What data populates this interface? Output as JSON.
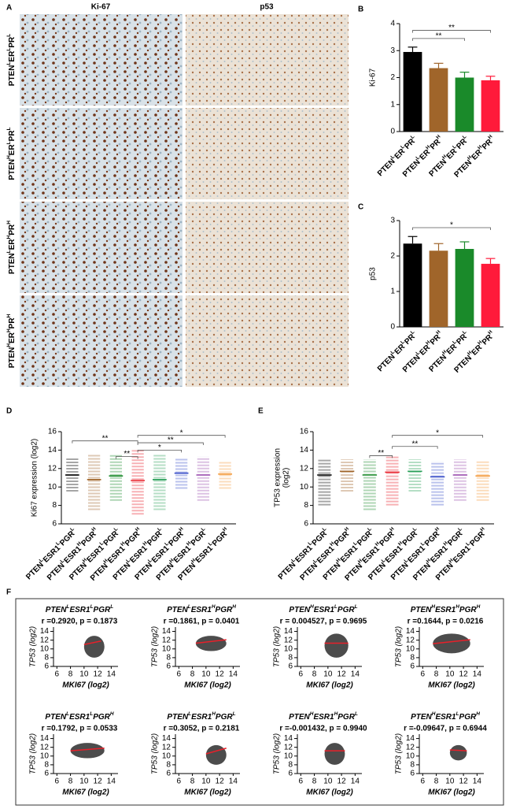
{
  "panel_A": {
    "letter": "A",
    "columns": [
      "Ki-67",
      "p53"
    ],
    "rows": [
      [
        "PTEN",
        "L",
        "ER",
        "L",
        "PR",
        "L"
      ],
      [
        "PTEN",
        "H",
        "ER",
        "L",
        "PR",
        "L"
      ],
      [
        "PTEN",
        "L",
        "ER",
        "H",
        "PR",
        "H"
      ],
      [
        "PTEN",
        "H",
        "ER",
        "H",
        "PR",
        "H"
      ]
    ]
  },
  "panel_F": {
    "letter": "F"
  },
  "chart_data": [
    {
      "type": "bar",
      "letter": "B",
      "ylabel": "Ki-67",
      "categories": [
        [
          "PTEN",
          "L",
          "ER",
          "L",
          "PR",
          "L"
        ],
        [
          "PTEN",
          "L",
          "ER",
          "H",
          "PR",
          "H"
        ],
        [
          "PTEN",
          "H",
          "ER",
          "L",
          "PR",
          "L"
        ],
        [
          "PTEN",
          "H",
          "ER",
          "H",
          "PR",
          "H"
        ]
      ],
      "values": [
        2.95,
        2.35,
        2.0,
        1.9
      ],
      "errors": [
        0.18,
        0.18,
        0.2,
        0.15
      ],
      "colors": [
        "#000000",
        "#a0652a",
        "#1a8a2a",
        "#ff1a3a"
      ],
      "ylim": [
        0,
        4
      ],
      "yticks": [
        0,
        1,
        2,
        3,
        4
      ],
      "brackets": [
        {
          "from": 0,
          "to": 3,
          "level": 3.75,
          "label": "**"
        },
        {
          "from": 0,
          "to": 2,
          "level": 3.45,
          "label": "**"
        }
      ]
    },
    {
      "type": "bar",
      "letter": "C",
      "ylabel": "p53",
      "categories": [
        [
          "PTEN",
          "L",
          "ER",
          "L",
          "PR",
          "L"
        ],
        [
          "PTEN",
          "L",
          "ER",
          "H",
          "PR",
          "H"
        ],
        [
          "PTEN",
          "H",
          "ER",
          "L",
          "PR",
          "L"
        ],
        [
          "PTEN",
          "H",
          "ER",
          "H",
          "PR",
          "H"
        ]
      ],
      "values": [
        2.35,
        2.15,
        2.2,
        1.78
      ],
      "errors": [
        0.2,
        0.2,
        0.2,
        0.15
      ],
      "colors": [
        "#000000",
        "#a0652a",
        "#1a8a2a",
        "#ff1a3a"
      ],
      "ylim": [
        0,
        3
      ],
      "yticks": [
        0,
        1,
        2,
        3
      ],
      "brackets": [
        {
          "from": 0,
          "to": 3,
          "level": 2.8,
          "label": "*"
        }
      ]
    },
    {
      "type": "dot",
      "letter": "D",
      "ylabel": [
        "Ki67 expression (log2)"
      ],
      "categories": [
        [
          "PTEN",
          "L",
          "ESR1",
          "L",
          "PGR",
          "L"
        ],
        [
          "PTEN",
          "L",
          "ESR1",
          "H",
          "PGR",
          "H"
        ],
        [
          "PTEN",
          "H",
          "ESR1",
          "L",
          "PGR",
          "L"
        ],
        [
          "PTEN",
          "H",
          "ESR1",
          "H",
          "PGR",
          "H"
        ],
        [
          "PTEN",
          "L",
          "ESR1",
          "H",
          "PGR",
          "L"
        ],
        [
          "PTEN",
          "L",
          "ESR1",
          "L",
          "PGR",
          "H"
        ],
        [
          "PTEN",
          "H",
          "ESR1",
          "H",
          "PGR",
          "L"
        ],
        [
          "PTEN",
          "H",
          "ESR1",
          "L",
          "PGR",
          "H"
        ]
      ],
      "values": [
        11.3,
        10.8,
        11.2,
        10.7,
        10.8,
        11.5,
        11.3,
        11.4
      ],
      "ranges": [
        [
          9.5,
          13.2
        ],
        [
          7.5,
          13.5
        ],
        [
          8.5,
          13.5
        ],
        [
          7,
          14
        ],
        [
          7.5,
          13.5
        ],
        [
          9.8,
          13.2
        ],
        [
          8.5,
          13.3
        ],
        [
          9.8,
          12.8
        ]
      ],
      "colors": [
        "#000000",
        "#a0652a",
        "#1a8a2a",
        "#e8202a",
        "#2aa05a",
        "#3a4fc8",
        "#9b4fb0",
        "#f39c40"
      ],
      "ylim": [
        6,
        16
      ],
      "yticks": [
        6,
        8,
        10,
        12,
        14,
        16
      ],
      "brackets": [
        {
          "from": 3,
          "to": 7,
          "level": 15.6,
          "label": "*"
        },
        {
          "from": 0,
          "to": 3,
          "level": 15.0,
          "label": "**"
        },
        {
          "from": 3,
          "to": 6,
          "level": 14.8,
          "label": "**"
        },
        {
          "from": 3,
          "to": 5,
          "level": 14.0,
          "label": "*"
        },
        {
          "from": 2,
          "to": 3,
          "level": 13.3,
          "label": "**"
        }
      ]
    },
    {
      "type": "dot",
      "letter": "E",
      "ylabel": [
        "TP53 expression",
        "(log2)"
      ],
      "categories": [
        [
          "PTEN",
          "L",
          "ESR1",
          "L",
          "PGR",
          "L"
        ],
        [
          "PTEN",
          "L",
          "ESR1",
          "H",
          "PGR",
          "H"
        ],
        [
          "PTEN",
          "H",
          "ESR1",
          "L",
          "PGR",
          "L"
        ],
        [
          "PTEN",
          "H",
          "ESR1",
          "H",
          "PGR",
          "H"
        ],
        [
          "PTEN",
          "L",
          "ESR1",
          "H",
          "PGR",
          "L"
        ],
        [
          "PTEN",
          "L",
          "ESR1",
          "L",
          "PGR",
          "H"
        ],
        [
          "PTEN",
          "H",
          "ESR1",
          "H",
          "PGR",
          "L"
        ],
        [
          "PTEN",
          "H",
          "ESR1",
          "L",
          "PGR",
          "H"
        ]
      ],
      "values": [
        11.3,
        11.7,
        11.3,
        11.6,
        11.7,
        11.1,
        11.3,
        11.2
      ],
      "ranges": [
        [
          8,
          13
        ],
        [
          9.5,
          13
        ],
        [
          7.5,
          13
        ],
        [
          8,
          13.3
        ],
        [
          9.5,
          13
        ],
        [
          8,
          12.8
        ],
        [
          8.5,
          13
        ],
        [
          8.5,
          12.8
        ]
      ],
      "colors": [
        "#000000",
        "#a0652a",
        "#1a8a2a",
        "#e8202a",
        "#2aa05a",
        "#3a4fc8",
        "#9b4fb0",
        "#f39c40"
      ],
      "ylim": [
        6,
        16
      ],
      "yticks": [
        6,
        8,
        10,
        12,
        14,
        16
      ],
      "brackets": [
        {
          "from": 3,
          "to": 7,
          "level": 15.6,
          "label": "*"
        },
        {
          "from": 3,
          "to": 5,
          "level": 14.4,
          "label": "**"
        },
        {
          "from": 2,
          "to": 3,
          "level": 13.4,
          "label": "**"
        }
      ]
    },
    {
      "type": "scatter",
      "title": [
        "PTEN",
        "L",
        "ESR1",
        "L",
        "PGR",
        "L"
      ],
      "annotation": "r =0.2920, p = 0.1873",
      "xlabel": "MKI67 (log2)",
      "ylabel": "TP53 (log2)",
      "xlim": [
        5.5,
        15
      ],
      "ylim": [
        6,
        15
      ],
      "xticks": [
        6,
        8,
        10,
        12,
        14
      ],
      "yticks": [
        6,
        8,
        10,
        12,
        14
      ],
      "fit_color": "#e8202a",
      "fit": {
        "x": [
          10,
          12.5
        ],
        "y": [
          11.0,
          11.8
        ]
      },
      "cloud": {
        "x": [
          10,
          13
        ],
        "y": [
          8,
          13
        ]
      }
    },
    {
      "type": "scatter",
      "title": [
        "PTEN",
        "L",
        "ESR1",
        "H",
        "PGR",
        "H"
      ],
      "annotation": "r =0.1861, p = 0.0401",
      "xlabel": "MKI67 (log2)",
      "ylabel": "TP53 (log2)",
      "xlim": [
        5.5,
        15
      ],
      "ylim": [
        6,
        15
      ],
      "xticks": [
        6,
        8,
        10,
        12,
        14
      ],
      "yticks": [
        6,
        8,
        10,
        12,
        14
      ],
      "fit_color": "#e8202a",
      "fit": {
        "x": [
          8.5,
          13
        ],
        "y": [
          11.3,
          12.1
        ]
      },
      "cloud": {
        "x": [
          8.5,
          13
        ],
        "y": [
          9.5,
          13
        ]
      }
    },
    {
      "type": "scatter",
      "title": [
        "PTEN",
        "H",
        "ESR1",
        "L",
        "PGR",
        "L"
      ],
      "annotation": "r = 0.004527, p = 0.9695",
      "xlabel": "MKI67 (log2)",
      "ylabel": "TP53 (log2)",
      "xlim": [
        5.5,
        15
      ],
      "ylim": [
        6,
        15
      ],
      "xticks": [
        6,
        8,
        10,
        12,
        14
      ],
      "yticks": [
        6,
        8,
        10,
        12,
        14
      ],
      "fit_color": "#e8202a",
      "fit": {
        "x": [
          9.5,
          13
        ],
        "y": [
          11.3,
          11.3
        ]
      },
      "cloud": {
        "x": [
          9.5,
          13
        ],
        "y": [
          8,
          13.5
        ]
      }
    },
    {
      "type": "scatter",
      "title": [
        "PTEN",
        "H",
        "ESR1",
        "H",
        "PGR",
        "H"
      ],
      "annotation": "r =0.1644, p = 0.0216",
      "xlabel": "MKI67 (log2)",
      "ylabel": "TP53 (log2)",
      "xlim": [
        5.5,
        15
      ],
      "ylim": [
        6,
        15
      ],
      "xticks": [
        6,
        8,
        10,
        12,
        14
      ],
      "yticks": [
        6,
        8,
        10,
        12,
        14
      ],
      "fit_color": "#e8202a",
      "fit": {
        "x": [
          7.5,
          13
        ],
        "y": [
          11.2,
          12.1
        ]
      },
      "cloud": {
        "x": [
          7.5,
          13
        ],
        "y": [
          9,
          13.5
        ]
      }
    },
    {
      "type": "scatter",
      "title": [
        "PTEN",
        "L",
        "ESR1",
        "L",
        "PGR",
        "H"
      ],
      "annotation": "r =0.1792, p = 0.0533",
      "xlabel": "MKI67 (log2)",
      "ylabel": "TP53 (log2)",
      "xlim": [
        5.5,
        15
      ],
      "ylim": [
        6,
        15
      ],
      "xticks": [
        6,
        8,
        10,
        12,
        14
      ],
      "yticks": [
        6,
        8,
        10,
        12,
        14
      ],
      "fit_color": "#e8202a",
      "fit": {
        "x": [
          8,
          13
        ],
        "y": [
          11.2,
          11.8
        ]
      },
      "cloud": {
        "x": [
          8,
          13
        ],
        "y": [
          9.5,
          13
        ]
      }
    },
    {
      "type": "scatter",
      "title": [
        "PTEN",
        "L",
        "ESR1",
        "H",
        "PGR",
        "L"
      ],
      "annotation": "r =0.3052, p = 0.2181",
      "xlabel": "MKI67 (log2)",
      "ylabel": "TP53 (log2)",
      "xlim": [
        5.5,
        15
      ],
      "ylim": [
        6,
        15
      ],
      "xticks": [
        6,
        8,
        10,
        12,
        14
      ],
      "yticks": [
        6,
        8,
        10,
        12,
        14
      ],
      "fit_color": "#e8202a",
      "fit": {
        "x": [
          10,
          13
        ],
        "y": [
          10.5,
          11.8
        ]
      },
      "cloud": {
        "x": [
          10,
          13
        ],
        "y": [
          8,
          12.5
        ]
      }
    },
    {
      "type": "scatter",
      "title": [
        "PTEN",
        "H",
        "ESR1",
        "H",
        "PGR",
        "L"
      ],
      "annotation": "r =-0.001432, p = 0.9940",
      "xlabel": "MKI67 (log2)",
      "ylabel": "TP53 (log2)",
      "xlim": [
        5.5,
        15
      ],
      "ylim": [
        6,
        15
      ],
      "xticks": [
        6,
        8,
        10,
        12,
        14
      ],
      "yticks": [
        6,
        8,
        10,
        12,
        14
      ],
      "fit_color": "#e8202a",
      "fit": {
        "x": [
          9.5,
          12.5
        ],
        "y": [
          11.2,
          11.2
        ]
      },
      "cloud": {
        "x": [
          9.5,
          12.5
        ],
        "y": [
          8,
          13
        ]
      }
    },
    {
      "type": "scatter",
      "title": [
        "PTEN",
        "H",
        "ESR1",
        "L",
        "PGR",
        "H"
      ],
      "annotation": "r =-0.09647, p = 0.6944",
      "xlabel": "MKI67 (log2)",
      "ylabel": "TP53 (log2)",
      "xlim": [
        5.5,
        15
      ],
      "ylim": [
        6,
        15
      ],
      "xticks": [
        6,
        8,
        10,
        12,
        14
      ],
      "yticks": [
        6,
        8,
        10,
        12,
        14
      ],
      "fit_color": "#e8202a",
      "fit": {
        "x": [
          10,
          12.5
        ],
        "y": [
          11.4,
          11.2
        ]
      },
      "cloud": {
        "x": [
          10,
          12.5
        ],
        "y": [
          9,
          12.5
        ]
      }
    }
  ]
}
